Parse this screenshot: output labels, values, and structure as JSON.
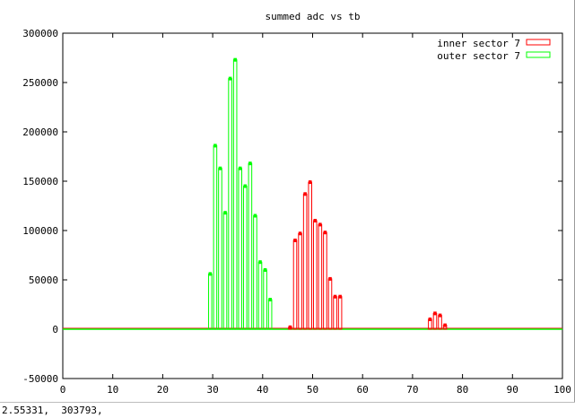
{
  "status": {
    "coords": "2.55331,  303793,"
  },
  "colors": {
    "inner": "#ff0000",
    "outer": "#00ff00",
    "axis": "#000000"
  },
  "chart_data": {
    "type": "bar",
    "style": "histogram-steps",
    "title": "summed adc vs tb",
    "xlabel": "",
    "ylabel": "",
    "xlim": [
      0,
      100
    ],
    "ylim": [
      -50000,
      300000
    ],
    "x_ticks": [
      0,
      10,
      20,
      30,
      40,
      50,
      60,
      70,
      80,
      90,
      100
    ],
    "y_ticks": [
      -50000,
      0,
      50000,
      100000,
      150000,
      200000,
      250000,
      300000
    ],
    "legend_position": "top-right",
    "grid": false,
    "series": [
      {
        "name": "inner sector 7",
        "color": "#ff0000",
        "x": [
          45,
          46,
          47,
          48,
          49,
          50,
          51,
          52,
          53,
          54,
          55,
          73,
          74,
          75,
          76
        ],
        "values": [
          2000,
          90000,
          97000,
          137000,
          149000,
          110000,
          106000,
          98000,
          51000,
          33000,
          33000,
          10000,
          16000,
          14000,
          4000
        ]
      },
      {
        "name": "outer sector 7",
        "color": "#00ff00",
        "x": [
          29,
          30,
          31,
          32,
          33,
          34,
          35,
          36,
          37,
          38,
          39,
          40,
          41
        ],
        "values": [
          56000,
          186000,
          163000,
          118000,
          254000,
          273000,
          163000,
          145000,
          168000,
          115000,
          68000,
          60000,
          30000
        ]
      }
    ]
  }
}
